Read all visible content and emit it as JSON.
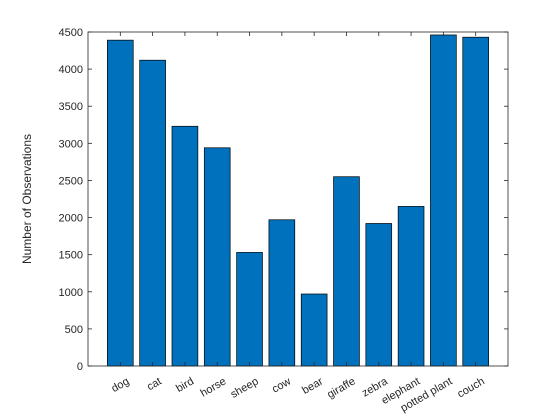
{
  "chart_data": {
    "type": "bar",
    "title": "",
    "xlabel": "",
    "ylabel": "Number of Observations",
    "categories": [
      "dog",
      "cat",
      "bird",
      "horse",
      "sheep",
      "cow",
      "bear",
      "giraffe",
      "zebra",
      "elephant",
      "potted plant",
      "couch"
    ],
    "values": [
      4390,
      4120,
      3230,
      2940,
      1530,
      1970,
      970,
      2550,
      1920,
      2150,
      4460,
      4430
    ],
    "ylim": [
      0,
      4500
    ],
    "yticks": [
      0,
      500,
      1000,
      1500,
      2000,
      2500,
      3000,
      3500,
      4000,
      4500
    ],
    "bar_color": "#0072BD",
    "grid": false,
    "legend": "none"
  }
}
